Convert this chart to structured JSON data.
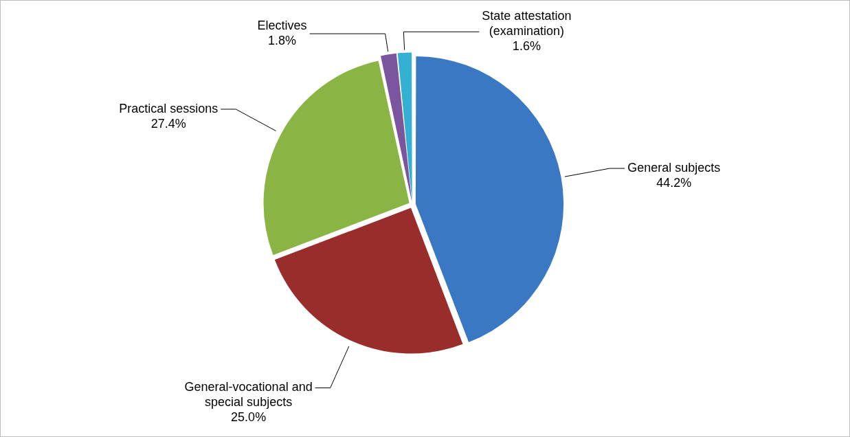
{
  "chart_data": {
    "type": "pie",
    "categories": [
      "General subjects",
      "General-vocational and special subjects",
      "Practical sessions",
      "Electives",
      "State attestation (examination)"
    ],
    "values": [
      44.2,
      25.0,
      27.4,
      1.8,
      1.6
    ],
    "colors": [
      "#3b78c3",
      "#992d2b",
      "#8ab443",
      "#7b559e",
      "#33b0d2"
    ],
    "value_labels": [
      "44.2%",
      "25.0%",
      "27.4%",
      "1.8%",
      "1.6%"
    ],
    "legend": false
  }
}
